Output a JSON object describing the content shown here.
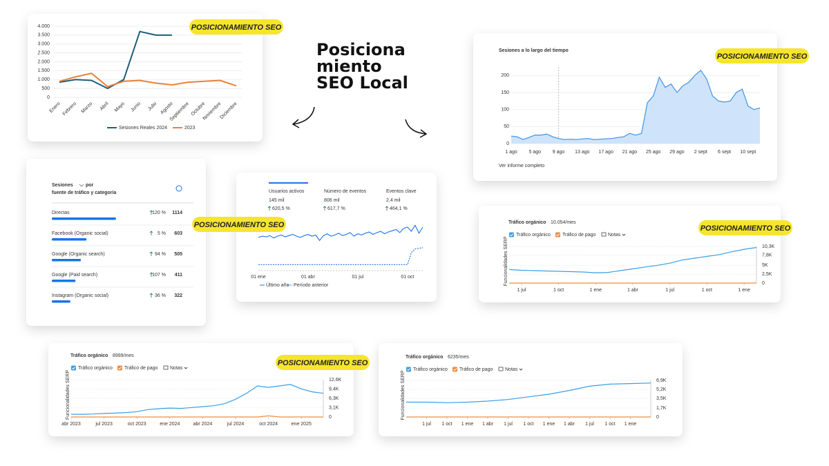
{
  "headline": [
    "Posiciona",
    "miento",
    "SEO Local"
  ],
  "chart_data": [
    {
      "type": "line",
      "badge": "POSICIONAMIENTO SEO",
      "categories": [
        "Enero",
        "Febrero",
        "Marzo",
        "Abril",
        "Mayo",
        "Junio",
        "Julio",
        "Agosto",
        "Septiembre",
        "Octubre",
        "Noviembre",
        "Diciembre"
      ],
      "series": [
        {
          "name": "Sesiones Reales 2024",
          "color": "#1f5c7a",
          "values": [
            850,
            1000,
            950,
            500,
            1000,
            3700,
            3500,
            3500,
            null,
            null,
            null,
            null
          ]
        },
        {
          "name": "2023",
          "color": "#e8803a",
          "values": [
            900,
            1150,
            1350,
            600,
            900,
            950,
            800,
            700,
            850,
            900,
            950,
            650
          ]
        }
      ],
      "ylim": [
        0,
        4000
      ],
      "yticks": [
        0,
        500,
        {
          "value": 1000,
          "label": "1.000"
        },
        {
          "value": 1500,
          "label": "1.500"
        },
        {
          "value": 2000,
          "label": "2.000"
        },
        {
          "value": 2500,
          "label": "2.500"
        },
        {
          "value": 3000,
          "label": "3.000"
        },
        {
          "value": 3500,
          "label": "3.500"
        },
        {
          "value": 4000,
          "label": "4.000"
        }
      ],
      "grid": true
    },
    {
      "type": "area",
      "title": "Sesiones a lo largo del tiempo",
      "link": "Ver informe completo",
      "badge": "POSICIONAMIENTO SEO",
      "color": "#4a9ae6",
      "categories": [
        "1 ago",
        null,
        null,
        null,
        "5 ago",
        null,
        null,
        null,
        "9 ago",
        null,
        null,
        null,
        "13 ago",
        null,
        null,
        null,
        "17 ago",
        null,
        null,
        null,
        "21 ago",
        null,
        null,
        null,
        "25 ago",
        null,
        null,
        null,
        "29 ago",
        null,
        null,
        null,
        "2 sept",
        null,
        null,
        null,
        "6 sept",
        null,
        null,
        null,
        "10 sept",
        null,
        null
      ],
      "values": [
        22,
        20,
        12,
        18,
        25,
        25,
        28,
        20,
        15,
        12,
        13,
        12,
        14,
        15,
        12,
        13,
        14,
        15,
        18,
        20,
        30,
        25,
        30,
        120,
        140,
        195,
        165,
        175,
        150,
        170,
        180,
        200,
        215,
        190,
        140,
        125,
        122,
        125,
        150,
        160,
        110,
        100,
        105
      ],
      "ylim": [
        0,
        225
      ],
      "yticks": [
        0,
        50,
        100,
        150,
        200
      ],
      "grid": true
    },
    {
      "type": "bar",
      "orientation": "horizontal",
      "title": "Sesiones",
      "title_suffix": "por",
      "subtitle": "fuente de tráfico y categoría",
      "color": "#1a73e8",
      "categories": [
        "Directas",
        "Facebook (Organic social)",
        "Google (Organic search)",
        "Google (Paid search)",
        "Instagram (Organic social)"
      ],
      "values": [
        1114,
        603,
        505,
        411,
        322
      ],
      "changes": [
        "120 %",
        "5 %",
        "94 %",
        "107 %",
        "36 %"
      ],
      "xlim": [
        0,
        1200
      ]
    },
    {
      "type": "line",
      "badge": "POSICIONAMIENTO SEO",
      "metrics": [
        {
          "label": "Usuarios activos",
          "value": "145 mil",
          "change": "620,5 %"
        },
        {
          "label": "Número de eventos",
          "value": "806 mil",
          "change": "617,7 %"
        },
        {
          "label": "Eventos clave",
          "value": "2,4 mil",
          "change": "464,1 %"
        }
      ],
      "categories": [
        "01 ene",
        null,
        null,
        null,
        null,
        null,
        null,
        null,
        null,
        null,
        null,
        null,
        null,
        "01 abr",
        null,
        null,
        null,
        null,
        null,
        null,
        null,
        null,
        null,
        null,
        null,
        null,
        "01 jul",
        null,
        null,
        null,
        null,
        null,
        null,
        null,
        null,
        null,
        null,
        null,
        null,
        "01 oct",
        null,
        null,
        null,
        null
      ],
      "series": [
        {
          "name": "Último año",
          "color": "#1a73e8",
          "values": [
            55,
            57,
            56,
            58,
            54,
            57,
            59,
            56,
            58,
            60,
            57,
            55,
            58,
            60,
            57,
            59,
            50,
            58,
            61,
            57,
            59,
            62,
            58,
            60,
            63,
            57,
            61,
            59,
            62,
            64,
            60,
            63,
            65,
            61,
            64,
            66,
            68,
            63,
            70,
            72,
            65,
            75,
            62,
            72
          ]
        },
        {
          "name": "Período anterior",
          "color": "#1a73e8",
          "dashed": true,
          "values": [
            10,
            10,
            10,
            10,
            10,
            10,
            10,
            10,
            10,
            10,
            10,
            10,
            10,
            10,
            10,
            10,
            10,
            10,
            10,
            10,
            10,
            10,
            10,
            10,
            10,
            10,
            10,
            10,
            10,
            10,
            10,
            10,
            10,
            10,
            10,
            10,
            10,
            10,
            10,
            10,
            30,
            36,
            37,
            38
          ]
        }
      ],
      "ylim": [
        0,
        80
      ]
    },
    {
      "type": "line",
      "title": "Tráfico orgánico",
      "subtitle": "10.054/mes",
      "notes": "Notas",
      "y_label": "Funcionalidades SERP",
      "badge": "POSICIONAMIENTO SEO",
      "categories": [
        null,
        "1 jul",
        null,
        null,
        "1 oct",
        null,
        null,
        "1 ene",
        null,
        null,
        "1 abr",
        null,
        null,
        "1 jul",
        null,
        null,
        "1 oct",
        null,
        null,
        "1 ene",
        null
      ],
      "series": [
        {
          "name": "Tráfico orgánico",
          "color": "#3a9ee4",
          "values": [
            3800,
            3600,
            3500,
            3400,
            3300,
            3200,
            3100,
            2900,
            3000,
            3500,
            4000,
            4500,
            5000,
            5600,
            6500,
            7000,
            7500,
            8000,
            8800,
            9500,
            10000
          ]
        },
        {
          "name": "Tráfico de pago",
          "color": "#f08a3a",
          "values": [
            0,
            0,
            0,
            0,
            0,
            0,
            0,
            0,
            0,
            0,
            0,
            0,
            0,
            0,
            0,
            0,
            0,
            0,
            0,
            0,
            0
          ]
        }
      ],
      "ylim": [
        0,
        10300
      ],
      "yticks": [
        0,
        {
          "value": 2500,
          "label": "2,5K"
        },
        {
          "value": 5000,
          "label": "5K"
        },
        {
          "value": 7800,
          "label": "7,8K"
        },
        {
          "value": 10300,
          "label": "10,3K"
        }
      ],
      "grid": true
    },
    {
      "type": "line",
      "title": "Tráfico orgánico",
      "subtitle": "8999/mes",
      "notes": "Notas",
      "y_label": "Funcionalidades SERP",
      "badge": "POSICIONAMIENTO SEO",
      "categories": [
        "abr 2023",
        null,
        null,
        "jul 2023",
        null,
        null,
        "oct 2023",
        null,
        null,
        "ene 2024",
        null,
        null,
        "abr 2024",
        null,
        null,
        "jul 2024",
        null,
        null,
        "oct 2024",
        null,
        null,
        "ene 2025",
        null,
        null
      ],
      "series": [
        {
          "name": "Tráfico orgánico",
          "color": "#3a9ee4",
          "values": [
            900,
            900,
            1000,
            1200,
            1300,
            1500,
            1800,
            2500,
            2800,
            3000,
            2900,
            3200,
            3500,
            3800,
            4500,
            6000,
            8000,
            10500,
            10000,
            10500,
            11000,
            9500,
            8500,
            8000
          ]
        },
        {
          "name": "Tráfico de pago",
          "color": "#f08a3a",
          "values": [
            0,
            0,
            0,
            0,
            0,
            0,
            0,
            0,
            0,
            0,
            0,
            0,
            0,
            0,
            0,
            0,
            0,
            0,
            400,
            0,
            0,
            0,
            0,
            0
          ]
        }
      ],
      "ylim": [
        0,
        12600
      ],
      "yticks": [
        0,
        {
          "value": 3100,
          "label": "3,1K"
        },
        {
          "value": 6300,
          "label": "6,3K"
        },
        {
          "value": 9400,
          "label": "9,4K"
        },
        {
          "value": 12600,
          "label": "12,6K"
        }
      ],
      "grid": true
    },
    {
      "type": "line",
      "title": "Tráfico orgánico",
      "subtitle": "6235/mes",
      "notes": "Notas",
      "y_label": "Funcionalidades SERP",
      "categories": [
        null,
        "1 jul",
        "1 oct",
        "1 ene",
        "1 abr",
        "1 jul",
        "1 oct",
        "1 ene",
        "1 abr",
        "1 jul",
        "1 oct",
        "1 ene",
        null
      ],
      "series": [
        {
          "name": "Tráfico orgánico",
          "color": "#3a9ee4",
          "values": [
            2800,
            2800,
            2700,
            2800,
            3000,
            3300,
            3800,
            4300,
            5000,
            5800,
            6200,
            6300,
            6400
          ]
        },
        {
          "name": "Tráfico de pago",
          "color": "#f08a3a",
          "values": [
            0,
            0,
            0,
            0,
            0,
            0,
            0,
            0,
            0,
            0,
            0,
            0,
            0
          ]
        }
      ],
      "ylim": [
        0,
        6900
      ],
      "yticks": [
        0,
        {
          "value": 1700,
          "label": "1,7K"
        },
        {
          "value": 3500,
          "label": "3,5K"
        },
        {
          "value": 5200,
          "label": "5,2K"
        },
        {
          "value": 6900,
          "label": "6,9K"
        }
      ],
      "grid": true
    }
  ]
}
